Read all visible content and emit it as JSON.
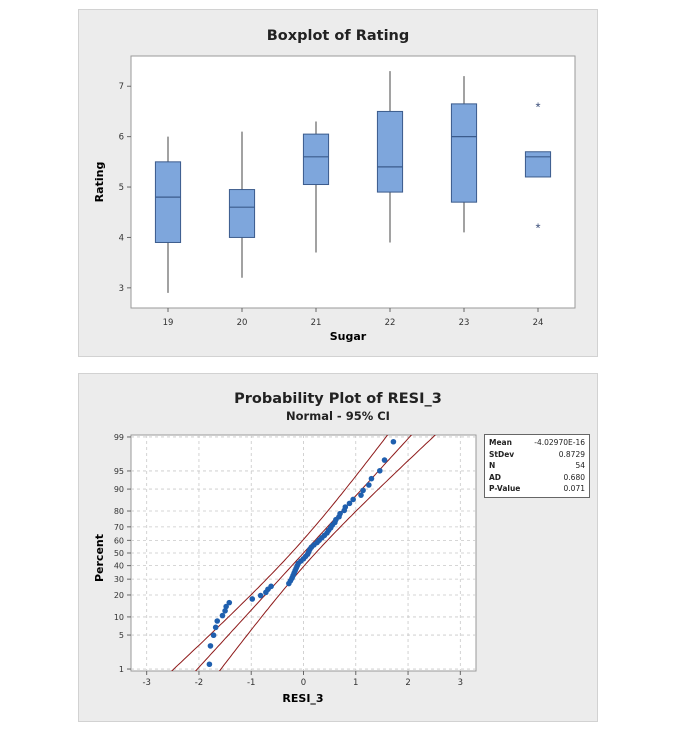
{
  "chart_data": [
    {
      "type": "boxplot",
      "title": "Boxplot of Rating",
      "xlabel": "Sugar",
      "ylabel": "Rating",
      "ylim": [
        2.6,
        7.6
      ],
      "yticks": [
        3,
        4,
        5,
        6,
        7
      ],
      "categories": [
        "19",
        "20",
        "21",
        "22",
        "23",
        "24"
      ],
      "boxes": [
        {
          "category": "19",
          "min": 2.9,
          "q1": 3.9,
          "median": 4.8,
          "q3": 5.5,
          "max": 6.0,
          "outliers": []
        },
        {
          "category": "20",
          "min": 3.2,
          "q1": 4.0,
          "median": 4.6,
          "q3": 4.95,
          "max": 6.1,
          "outliers": []
        },
        {
          "category": "21",
          "min": 3.7,
          "q1": 5.05,
          "median": 5.6,
          "q3": 6.05,
          "max": 6.3,
          "outliers": []
        },
        {
          "category": "22",
          "min": 3.9,
          "q1": 4.9,
          "median": 5.4,
          "q3": 6.5,
          "max": 7.3,
          "outliers": []
        },
        {
          "category": "23",
          "min": 4.1,
          "q1": 4.7,
          "median": 6.0,
          "q3": 6.65,
          "max": 7.2,
          "outliers": []
        },
        {
          "category": "24",
          "min": 5.2,
          "q1": 5.2,
          "median": 5.6,
          "q3": 5.7,
          "max": 5.7,
          "outliers": [
            6.6,
            4.2
          ]
        }
      ],
      "colors": {
        "box_fill": "#7ea6dc",
        "box_stroke": "#3b5b8c",
        "whisker": "#444444",
        "outlier": "#3c4f7a"
      }
    },
    {
      "type": "probability",
      "title": "Probability Plot of RESI_3",
      "subtitle": "Normal - 95% CI",
      "xlabel": "RESI_3",
      "ylabel": "Percent",
      "xlim": [
        -3.3,
        3.3
      ],
      "xticks": [
        -3,
        -2,
        -1,
        0,
        1,
        2,
        3
      ],
      "yticks": [
        1,
        5,
        10,
        20,
        30,
        40,
        50,
        60,
        70,
        80,
        90,
        95,
        99
      ],
      "ylim_percent": [
        0.9,
        99.1
      ],
      "mean": -4.0297e-16,
      "stdev": 0.8729,
      "n": 54,
      "colors": {
        "point": "#1f5fae",
        "fit_line": "#8e1a1a",
        "grid": "#c8c8c8"
      },
      "points_x": [
        -1.8,
        -1.78,
        -1.72,
        -1.68,
        -1.65,
        -1.55,
        -1.5,
        -1.48,
        -1.42,
        -0.98,
        -0.82,
        -0.72,
        -0.68,
        -0.62,
        -0.28,
        -0.25,
        -0.22,
        -0.2,
        -0.18,
        -0.16,
        -0.14,
        -0.12,
        -0.1,
        -0.05,
        0.0,
        0.04,
        0.08,
        0.1,
        0.12,
        0.15,
        0.2,
        0.26,
        0.3,
        0.35,
        0.4,
        0.45,
        0.48,
        0.52,
        0.55,
        0.6,
        0.62,
        0.68,
        0.7,
        0.78,
        0.8,
        0.88,
        0.95,
        1.1,
        1.14,
        1.25,
        1.3,
        1.46,
        1.55,
        1.72
      ]
    }
  ],
  "stats_box": [
    {
      "key": "Mean",
      "value": "-4.02970E-16"
    },
    {
      "key": "StDev",
      "value": "0.8729"
    },
    {
      "key": "N",
      "value": "54"
    },
    {
      "key": "AD",
      "value": "0.680"
    },
    {
      "key": "P-Value",
      "value": "0.071"
    }
  ]
}
